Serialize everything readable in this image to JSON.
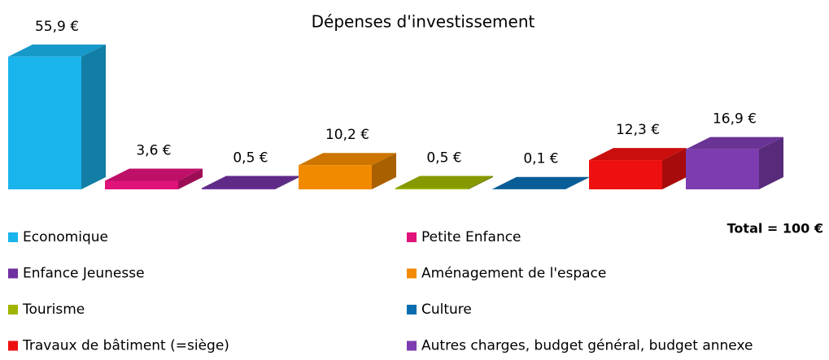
{
  "chart_data": {
    "type": "bar3d",
    "title": "Dépenses d'investissement",
    "categories": [
      "Economique",
      "Petite Enfance",
      "Enfance Jeunesse",
      "Aménagement de l'espace",
      "Tourisme",
      "Culture",
      "Travaux de bâtiment (=siège)",
      "Autres charges, budget général, budget annexe"
    ],
    "values": [
      55.9,
      3.6,
      0.5,
      10.2,
      0.5,
      0.1,
      12.3,
      16.9
    ],
    "value_labels": [
      "55,9 €",
      "3,6 €",
      "0,5 €",
      "10,2 €",
      "0,5 €",
      "0,1 €",
      "12,3 €",
      "16,9 €"
    ],
    "colors": [
      "#1ab4ec",
      "#e0137a",
      "#7030a0",
      "#f28a00",
      "#9fb400",
      "#0b6db0",
      "#ee1010",
      "#7d3cb0"
    ],
    "annotation": "Total = 100 €"
  }
}
